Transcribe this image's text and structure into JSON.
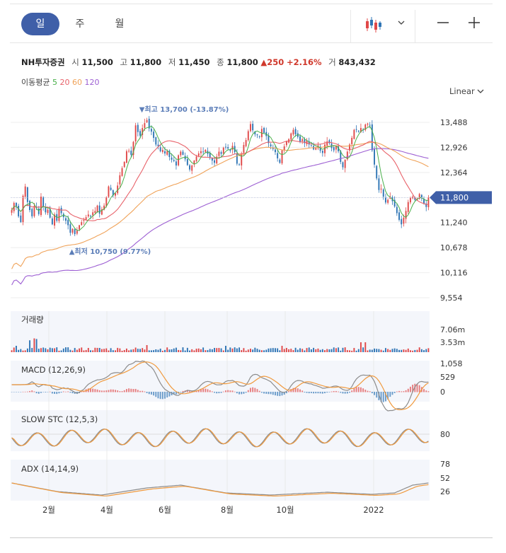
{
  "tabs": [
    {
      "label": "일"
    },
    {
      "label": "주"
    },
    {
      "label": "월"
    }
  ],
  "info": {
    "name": "NH투자증권",
    "open_label": "시",
    "open": "11,500",
    "high_label": "고",
    "high": "11,800",
    "low_label": "저",
    "low": "11,450",
    "close_label": "종",
    "close": "11,800",
    "change": "▲250",
    "change_pct": "+2.16%",
    "volume_label": "거",
    "volume": "843,432"
  },
  "ma": {
    "label": "이동평균",
    "p5": "5",
    "p20": "20",
    "p60": "60",
    "p120": "120"
  },
  "scale": {
    "label": "Linear"
  },
  "colors": {
    "up": "#e04848",
    "down": "#2f75b5",
    "ma5": "#49b04a",
    "ma20": "#e8626a",
    "ma60": "#f0a35a",
    "ma120": "#9d5fd3",
    "macd": "#8c8c8c",
    "signal": "#f09a3e",
    "tag": "#3f5fa8"
  },
  "chart_data": {
    "type": "candlestick",
    "price_axis": {
      "ticks": [
        "13,488",
        "12,926",
        "12,364",
        "11,800",
        "11,240",
        "10,678",
        "10,116",
        "9,554"
      ],
      "current_label": "11,800"
    },
    "x_ticks": [
      "2월",
      "4월",
      "6월",
      "8월",
      "10월",
      "2022"
    ],
    "annotations": {
      "high": "▼최고 13,700 (-13.87%)",
      "low": "▲최저 10,750 (9.77%)"
    },
    "close": [
      11520,
      11680,
      11610,
      11380,
      11250,
      11840,
      12050,
      11700,
      11520,
      11380,
      11610,
      11570,
      11430,
      11820,
      11600,
      11470,
      11530,
      11350,
      11200,
      11420,
      11280,
      11550,
      11450,
      11360,
      11280,
      11180,
      11010,
      11100,
      10980,
      11060,
      11180,
      11250,
      11300,
      11360,
      11420,
      11390,
      11470,
      11500,
      11620,
      11440,
      11540,
      11620,
      11800,
      12050,
      11970,
      11850,
      11900,
      12070,
      12300,
      12460,
      12600,
      12840,
      12850,
      12760,
      13050,
      13420,
      13270,
      13190,
      13360,
      13470,
      13540,
      13350,
      13280,
      13140,
      12990,
      12950,
      12840,
      12870,
      12790,
      12840,
      12710,
      12650,
      12620,
      12520,
      12750,
      12830,
      12760,
      12660,
      12530,
      12430,
      12520,
      12630,
      12720,
      12790,
      12840,
      12830,
      12870,
      12780,
      12690,
      12630,
      12580,
      12720,
      12830,
      12780,
      12920,
      12930,
      12900,
      12850,
      12960,
      12820,
      12560,
      12530,
      12790,
      12980,
      13090,
      13290,
      13450,
      13310,
      13220,
      13200,
      13160,
      13340,
      13250,
      13180,
      13020,
      12950,
      12890,
      12820,
      12680,
      12580,
      12860,
      12950,
      13060,
      13110,
      13240,
      13320,
      13220,
      13160,
      13050,
      13110,
      13020,
      13080,
      12990,
      12960,
      12880,
      12910,
      12970,
      12850,
      12800,
      12990,
      13060,
      13020,
      12910,
      12860,
      12950,
      12840,
      12600,
      12480,
      12650,
      12830,
      12990,
      13140,
      13320,
      13330,
      13280,
      13360,
      13310,
      13440,
      13460,
      13430,
      12860,
      12540,
      12230,
      11970,
      12000,
      11820,
      11690,
      11750,
      11820,
      11720,
      11600,
      11450,
      11300,
      11200,
      11350,
      11500,
      11700,
      11800,
      11820,
      11750,
      11760,
      11880,
      11780,
      11660,
      11590,
      11800
    ]
  }
}
